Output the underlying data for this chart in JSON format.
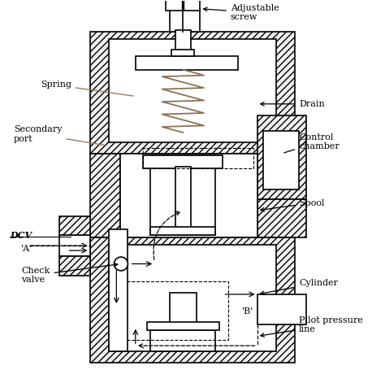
{
  "bg_color": "#ffffff",
  "line_color": "#000000",
  "hatch_color": "#8B7355",
  "hatch_pattern": "////",
  "spring_color": "#8B7355",
  "labels": {
    "adjustable_screw": "Adjustable\nscrew",
    "spring": "Spring",
    "drain": "Drain",
    "secondary_port": "Secondary\nport",
    "control_chamber": "Control\nchamber",
    "dcv": "DCV",
    "port_a": "'A'",
    "spool": "Spool",
    "check_valve": "Check\nvalve",
    "cylinder": "Cylinder",
    "port_b": "'B'",
    "pilot_pressure_line": "Pilot pressure\nline"
  },
  "figsize": [
    4.74,
    4.71
  ],
  "dpi": 100
}
